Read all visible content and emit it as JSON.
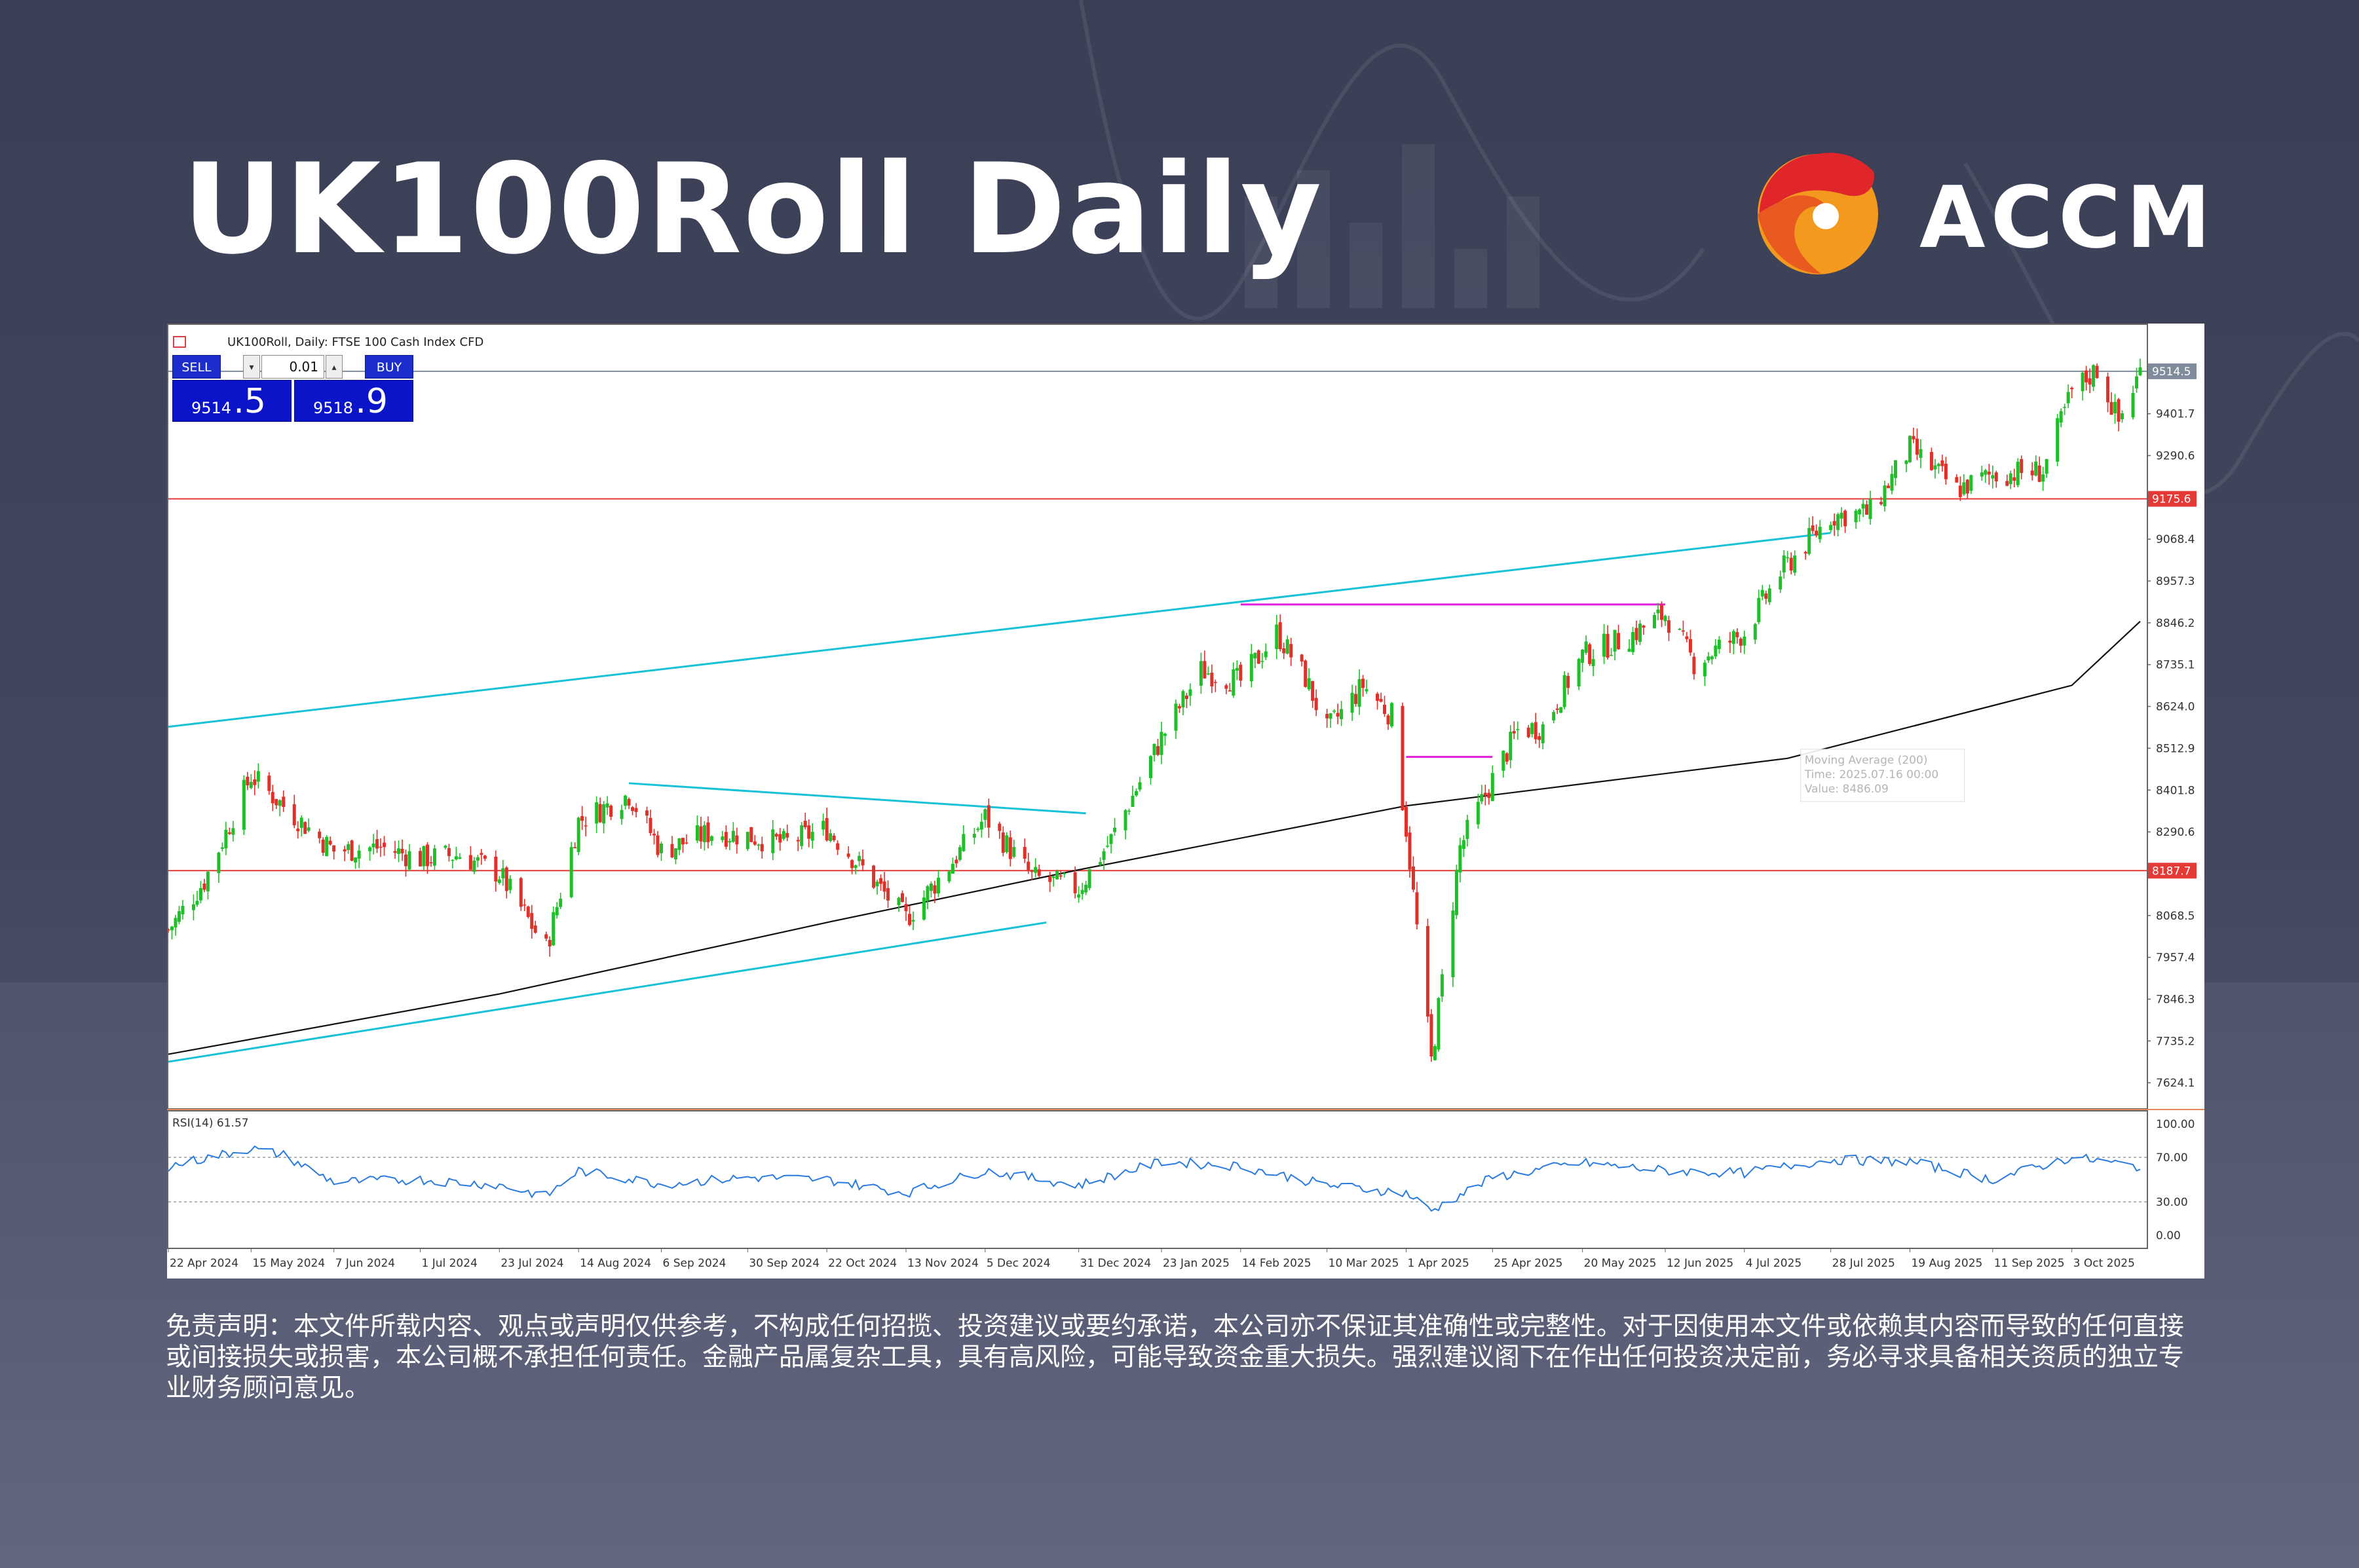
{
  "header": {
    "title": "UK100Roll Daily",
    "brand": "ACCM",
    "brand_colors": {
      "red": "#e0252b",
      "orange": "#f39a1e"
    }
  },
  "trade_panel": {
    "sell_label": "SELL",
    "buy_label": "BUY",
    "lot": "0.01",
    "sell_price_main": "9514",
    "sell_price_tail": ".5",
    "buy_price_main": "9518",
    "buy_price_tail": ".9",
    "down_arrow_icon": "chevron-down-icon",
    "up_arrow_icon": "chevron-up-icon"
  },
  "chart_data": {
    "type": "candlestick",
    "symbol_label": "UK100Roll, Daily:  FTSE 100 Cash Index CFD",
    "price_axis": {
      "ticks": [
        9401.7,
        9290.6,
        9068.4,
        8957.3,
        8846.2,
        8735.1,
        8624.0,
        8512.9,
        8401.8,
        8290.6,
        8068.5,
        7957.4,
        7846.3,
        7735.2,
        7624.1
      ],
      "range": [
        7560,
        9610
      ]
    },
    "price_labels": [
      {
        "value": 9514.5,
        "text": "9514.5",
        "color": "#7f8c99"
      },
      {
        "value": 9175.6,
        "text": "9175.6",
        "color": "#e53935"
      },
      {
        "value": 8187.7,
        "text": "8187.7",
        "color": "#e53935"
      }
    ],
    "horizontal_levels": [
      {
        "value": 9175.6,
        "color": "#e53935"
      },
      {
        "value": 8187.7,
        "color": "#e53935"
      },
      {
        "value": 9514.5,
        "color": "#7f8c99"
      }
    ],
    "x_axis_labels": [
      "22 Apr 2024",
      "15 May 2024",
      "7 Jun 2024",
      "1 Jul 2024",
      "23 Jul 2024",
      "14 Aug 2024",
      "6 Sep 2024",
      "30 Sep 2024",
      "22 Oct 2024",
      "13 Nov 2024",
      "5 Dec 2024",
      "31 Dec 2024",
      "23 Jan 2025",
      "14 Feb 2025",
      "10 Mar 2025",
      "1 Apr 2025",
      "25 Apr 2025",
      "20 May 2025",
      "12 Jun 2025",
      "4 Jul 2025",
      "28 Jul 2025",
      "19 Aug 2025",
      "11 Sep 2025",
      "3 Oct 2025"
    ],
    "close_path": [
      [
        "22 Apr 2024",
        8030
      ],
      [
        "2 May 2024",
        8160
      ],
      [
        "15 May 2024",
        8440
      ],
      [
        "24 May 2024",
        8360
      ],
      [
        "7 Jun 2024",
        8240
      ],
      [
        "20 Jun 2024",
        8250
      ],
      [
        "1 Jul 2024",
        8220
      ],
      [
        "12 Jul 2024",
        8230
      ],
      [
        "23 Jul 2024",
        8180
      ],
      [
        "5 Aug 2024",
        7980
      ],
      [
        "14 Aug 2024",
        8320
      ],
      [
        "28 Aug 2024",
        8390
      ],
      [
        "6 Sep 2024",
        8240
      ],
      [
        "20 Sep 2024",
        8290
      ],
      [
        "30 Sep 2024",
        8280
      ],
      [
        "10 Oct 2024",
        8260
      ],
      [
        "22 Oct 2024",
        8300
      ],
      [
        "4 Nov 2024",
        8160
      ],
      [
        "13 Nov 2024",
        8060
      ],
      [
        "25 Nov 2024",
        8200
      ],
      [
        "5 Dec 2024",
        8330
      ],
      [
        "18 Dec 2024",
        8170
      ],
      [
        "31 Dec 2024",
        8140
      ],
      [
        "9 Jan 2025",
        8270
      ],
      [
        "23 Jan 2025",
        8540
      ],
      [
        "3 Feb 2025",
        8720
      ],
      [
        "14 Feb 2025",
        8690
      ],
      [
        "24 Feb 2025",
        8820
      ],
      [
        "4 Mar 2025",
        8700
      ],
      [
        "10 Mar 2025",
        8560
      ],
      [
        "20 Mar 2025",
        8680
      ],
      [
        "28 Mar 2025",
        8600
      ],
      [
        "1 Apr 2025",
        8300
      ],
      [
        "8 Apr 2025",
        7680
      ],
      [
        "16 Apr 2025",
        8250
      ],
      [
        "25 Apr 2025",
        8430
      ],
      [
        "2 May 2025",
        8560
      ],
      [
        "9 May 2025",
        8570
      ],
      [
        "20 May 2025",
        8760
      ],
      [
        "2 Jun 2025",
        8810
      ],
      [
        "12 Jun 2025",
        8870
      ],
      [
        "20 Jun 2025",
        8740
      ],
      [
        "4 Jul 2025",
        8820
      ],
      [
        "14 Jul 2025",
        8980
      ],
      [
        "28 Jul 2025",
        9130
      ],
      [
        "8 Aug 2025",
        9140
      ],
      [
        "19 Aug 2025",
        9310
      ],
      [
        "1 Sep 2025",
        9200
      ],
      [
        "11 Sep 2025",
        9240
      ],
      [
        "25 Sep 2025",
        9250
      ],
      [
        "3 Oct 2025",
        9460
      ],
      [
        "10 Oct 2025",
        9520
      ],
      [
        "16 Oct 2025",
        9380
      ],
      [
        "22 Oct 2025",
        9514.5
      ]
    ],
    "moving_average": {
      "label_lines": [
        "Moving Average (200)",
        "Time: 2025.07.16 00:00",
        "Value: 8486.09"
      ],
      "path": [
        [
          "22 Apr 2024",
          7700
        ],
        [
          "23 Jul 2024",
          7860
        ],
        [
          "22 Oct 2024",
          8050
        ],
        [
          "31 Dec 2024",
          8190
        ],
        [
          "1 Apr 2025",
          8360
        ],
        [
          "16 Jul 2025",
          8486.09
        ],
        [
          "3 Oct 2025",
          8680
        ],
        [
          "22 Oct 2025",
          8850
        ]
      ]
    },
    "rsi": {
      "label": "RSI(14) 61.57",
      "ticks": [
        100,
        70,
        30,
        0
      ],
      "tick_labels": [
        "100.00",
        "70.00",
        "30.00",
        "0.00"
      ],
      "levels": [
        70,
        30
      ],
      "path": [
        [
          "22 Apr 2024",
          62
        ],
        [
          "15 May 2024",
          78
        ],
        [
          "24 May 2024",
          72
        ],
        [
          "7 Jun 2024",
          48
        ],
        [
          "1 Jul 2024",
          50
        ],
        [
          "23 Jul 2024",
          45
        ],
        [
          "5 Aug 2024",
          35
        ],
        [
          "14 Aug 2024",
          58
        ],
        [
          "6 Sep 2024",
          46
        ],
        [
          "30 Sep 2024",
          52
        ],
        [
          "22 Oct 2024",
          50
        ],
        [
          "13 Nov 2024",
          38
        ],
        [
          "5 Dec 2024",
          58
        ],
        [
          "31 Dec 2024",
          45
        ],
        [
          "23 Jan 2025",
          66
        ],
        [
          "14 Feb 2025",
          62
        ],
        [
          "10 Mar 2025",
          45
        ],
        [
          "1 Apr 2025",
          38
        ],
        [
          "8 Apr 2025",
          22
        ],
        [
          "25 Apr 2025",
          52
        ],
        [
          "20 May 2025",
          65
        ],
        [
          "12 Jun 2025",
          58
        ],
        [
          "4 Jul 2025",
          56
        ],
        [
          "28 Jul 2025",
          68
        ],
        [
          "19 Aug 2025",
          66
        ],
        [
          "11 Sep 2025",
          50
        ],
        [
          "3 Oct 2025",
          70
        ],
        [
          "22 Oct 2025",
          61.57
        ]
      ]
    },
    "trendlines": [
      {
        "color": "#18c2d6",
        "from": [
          "22 Apr 2024",
          8570
        ],
        "to": [
          "28 Jul 2025",
          9085
        ]
      },
      {
        "color": "#18c2d6",
        "from": [
          "22 Apr 2024",
          7680
        ],
        "to": [
          "22 Dec 2024",
          8050
        ]
      },
      {
        "color": "#18c2d6",
        "from": [
          "28 Aug 2024",
          8420
        ],
        "to": [
          "2 Jan 2025",
          8340
        ]
      },
      {
        "color": "#e020d8",
        "from": [
          "14 Feb 2025",
          8895
        ],
        "to": [
          "12 Jun 2025",
          8895
        ]
      },
      {
        "color": "#e020d8",
        "from": [
          "1 Apr 2025",
          8490
        ],
        "to": [
          "25 Apr 2025",
          8490
        ]
      }
    ]
  },
  "disclaimer": "免责声明：本文件所载内容、观点或声明仅供参考，不构成任何招揽、投资建议或要约承诺，本公司亦不保证其准确性或完整性。对于因使用本文件或依赖其内容而导致的任何直接或间接损失或损害，本公司概不承担任何责任。金融产品属复杂工具，具有高风险，可能导致资金重大损失。强烈建议阁下在作出任何投资决定前，务必寻求具备相关资质的独立专业财务顾问意见。"
}
